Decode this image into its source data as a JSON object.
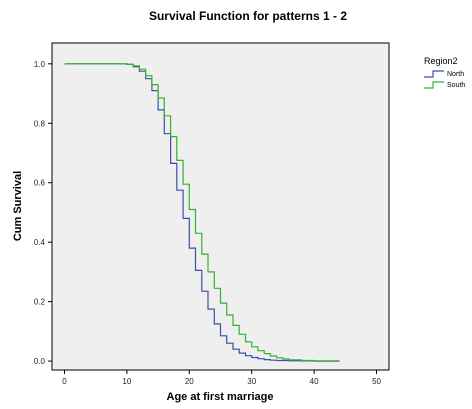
{
  "chart_data": {
    "type": "line",
    "step": true,
    "title": "Survival Function for patterns 1 - 2",
    "xlabel": "Age at first marriage",
    "ylabel": "Cum Survival",
    "xlim": [
      -2,
      52
    ],
    "ylim": [
      -0.03,
      1.07
    ],
    "x_ticks": [
      0,
      10,
      20,
      30,
      40,
      50
    ],
    "y_ticks": [
      0.0,
      0.2,
      0.4,
      0.6,
      0.8,
      1.0
    ],
    "x_tick_labels": [
      "0",
      "10",
      "20",
      "30",
      "40",
      "50"
    ],
    "y_tick_labels": [
      "0.0",
      "0.2",
      "0.4",
      "0.6",
      "0.8",
      "1.0"
    ],
    "grid": false,
    "legend": {
      "title": "Region2",
      "placement": "top-right"
    },
    "series": [
      {
        "name": "North",
        "color": "#3c4fa8",
        "x": [
          0,
          10,
          11,
          12,
          13,
          14,
          15,
          16,
          17,
          18,
          19,
          20,
          21,
          22,
          23,
          24,
          25,
          26,
          27,
          28,
          29,
          30,
          31,
          32,
          33,
          34,
          36,
          38,
          40,
          44
        ],
        "y": [
          1.0,
          0.998,
          0.99,
          0.975,
          0.95,
          0.91,
          0.845,
          0.765,
          0.665,
          0.575,
          0.48,
          0.38,
          0.305,
          0.235,
          0.175,
          0.125,
          0.085,
          0.06,
          0.04,
          0.027,
          0.018,
          0.012,
          0.008,
          0.005,
          0.003,
          0.002,
          0.001,
          0.0005,
          0.0,
          0.0
        ]
      },
      {
        "name": "South",
        "color": "#33b233",
        "x": [
          0,
          10,
          11,
          12,
          13,
          14,
          15,
          16,
          17,
          18,
          19,
          20,
          21,
          22,
          23,
          24,
          25,
          26,
          27,
          28,
          29,
          30,
          31,
          32,
          33,
          34,
          35,
          36,
          38,
          40,
          44
        ],
        "y": [
          1.0,
          0.998,
          0.993,
          0.982,
          0.96,
          0.93,
          0.885,
          0.825,
          0.755,
          0.675,
          0.595,
          0.51,
          0.43,
          0.36,
          0.3,
          0.245,
          0.195,
          0.155,
          0.12,
          0.09,
          0.065,
          0.048,
          0.035,
          0.025,
          0.017,
          0.011,
          0.007,
          0.004,
          0.002,
          0.001,
          0.0
        ]
      }
    ]
  }
}
